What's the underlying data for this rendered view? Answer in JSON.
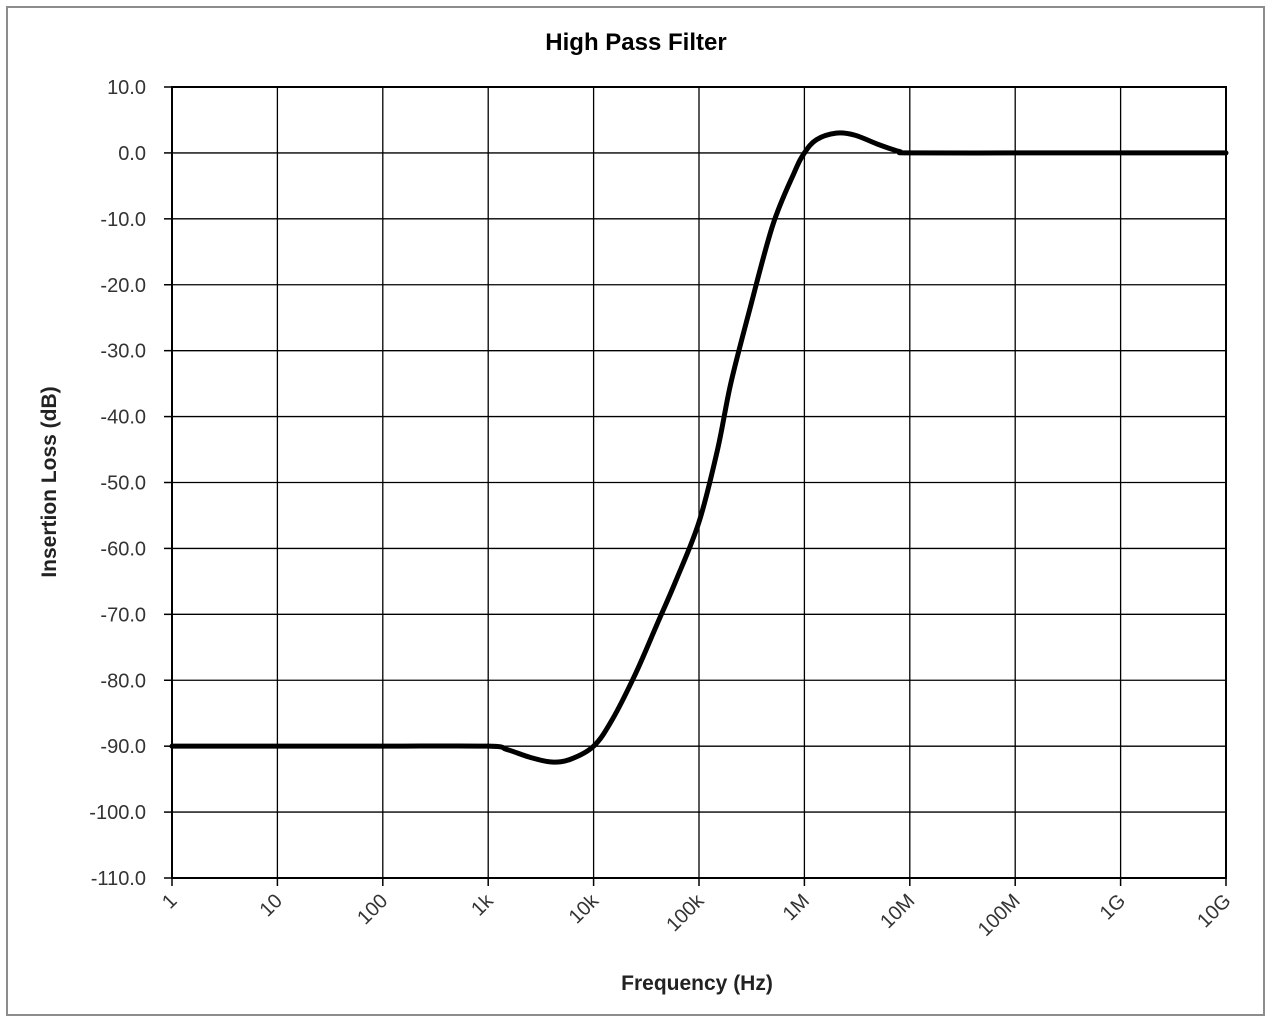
{
  "chart_data": {
    "type": "line",
    "title": "High Pass Filter",
    "xlabel": "Frequency (Hz)",
    "ylabel": "Insertion Loss (dB)",
    "x_scale": "log",
    "xlim": [
      1,
      10000000000
    ],
    "ylim": [
      -110,
      10
    ],
    "x_ticks": [
      {
        "value": 1,
        "label": "1"
      },
      {
        "value": 10,
        "label": "10"
      },
      {
        "value": 100,
        "label": "100"
      },
      {
        "value": 1000,
        "label": "1k"
      },
      {
        "value": 10000,
        "label": "10k"
      },
      {
        "value": 100000,
        "label": "100k"
      },
      {
        "value": 1000000,
        "label": "1M"
      },
      {
        "value": 10000000,
        "label": "10M"
      },
      {
        "value": 100000000,
        "label": "100M"
      },
      {
        "value": 1000000000,
        "label": "1G"
      },
      {
        "value": 10000000000,
        "label": "10G"
      }
    ],
    "y_ticks": [
      {
        "value": 10,
        "label": "10.0"
      },
      {
        "value": 0,
        "label": "0.0"
      },
      {
        "value": -10,
        "label": "-10.0"
      },
      {
        "value": -20,
        "label": "-20.0"
      },
      {
        "value": -30,
        "label": "-30.0"
      },
      {
        "value": -40,
        "label": "-40.0"
      },
      {
        "value": -50,
        "label": "-50.0"
      },
      {
        "value": -60,
        "label": "-60.0"
      },
      {
        "value": -70,
        "label": "-70.0"
      },
      {
        "value": -80,
        "label": "-80.0"
      },
      {
        "value": -90,
        "label": "-90.0"
      },
      {
        "value": -100,
        "label": "-100.0"
      },
      {
        "value": -110,
        "label": "-110.0"
      }
    ],
    "grid": true,
    "legend": "none",
    "series": [
      {
        "color": "#000000",
        "points": [
          [
            1,
            -90
          ],
          [
            10,
            -90
          ],
          [
            100,
            -90
          ],
          [
            1000,
            -90
          ],
          [
            1500,
            -90.5
          ],
          [
            2500,
            -91.7
          ],
          [
            4000,
            -92.4
          ],
          [
            6000,
            -92.0
          ],
          [
            10000,
            -90
          ],
          [
            15000,
            -86
          ],
          [
            25000,
            -79
          ],
          [
            40000,
            -71.5
          ],
          [
            60000,
            -65
          ],
          [
            100000,
            -56
          ],
          [
            150000,
            -45
          ],
          [
            200000,
            -35
          ],
          [
            300000,
            -24
          ],
          [
            500000,
            -11
          ],
          [
            800000,
            -3
          ],
          [
            1000000,
            0
          ],
          [
            1300000,
            2
          ],
          [
            2000000,
            3
          ],
          [
            3000000,
            2.7
          ],
          [
            5000000,
            1.3
          ],
          [
            8000000,
            0.2
          ],
          [
            10000000,
            0
          ],
          [
            100000000,
            0
          ],
          [
            1000000000,
            0
          ],
          [
            10000000000,
            0
          ]
        ]
      }
    ]
  }
}
